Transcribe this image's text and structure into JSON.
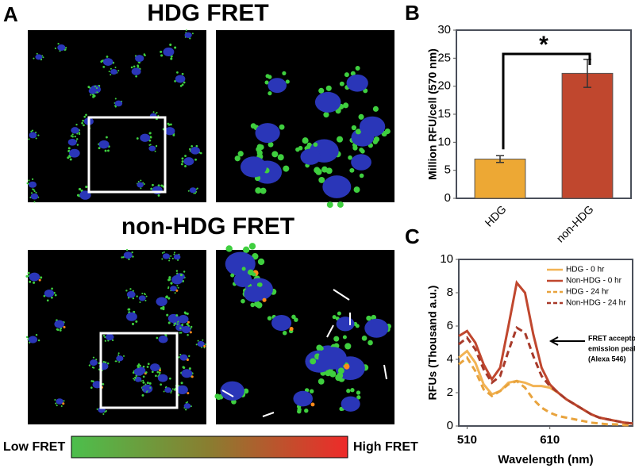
{
  "figure": {
    "panels": [
      "A",
      "B",
      "C"
    ],
    "titles": [
      "HDG FRET",
      "non-HDG FRET"
    ],
    "title_colors": [
      "#e8a33d",
      "#c0472e"
    ],
    "colorbar": {
      "low": "Low FRET",
      "high": "High FRET"
    }
  },
  "chart_data": [
    {
      "type": "bar",
      "ylabel": "Million RFU/cell (570 nm)",
      "categories": [
        "HDG",
        "non-HDG"
      ],
      "values": [
        7.0,
        22.3
      ],
      "errors": [
        0.6,
        2.5
      ],
      "colors": [
        "#eda834",
        "#c0472e"
      ],
      "ylim": [
        0,
        30
      ],
      "yticks": [
        0,
        5,
        10,
        15,
        20,
        25,
        30
      ],
      "annotations": [
        "*"
      ]
    },
    {
      "type": "line",
      "xlabel": "Wavelength (nm)",
      "ylabel": "RFUs (Thousand a.u.)",
      "xlim": [
        500,
        710
      ],
      "xticks": [
        510,
        610
      ],
      "ylim": [
        0,
        10
      ],
      "yticks": [
        0,
        2,
        4,
        6,
        8,
        10
      ],
      "x": [
        500,
        510,
        520,
        530,
        540,
        550,
        560,
        570,
        580,
        590,
        600,
        610,
        620,
        630,
        640,
        650,
        660,
        670,
        680,
        690,
        700,
        710
      ],
      "series": [
        {
          "name": "HDG - 0 hr",
          "color": "#f2b354",
          "dashed": false,
          "values": [
            4.1,
            4.5,
            3.8,
            2.5,
            1.9,
            2.1,
            2.6,
            2.7,
            2.6,
            2.4,
            2.4,
            2.3,
            2.0,
            1.6,
            1.3,
            1.0,
            0.7,
            0.5,
            0.4,
            0.3,
            0.2,
            0.15
          ]
        },
        {
          "name": "Non-HDG - 0 hr",
          "color": "#c0472e",
          "dashed": false,
          "values": [
            5.4,
            5.7,
            5.0,
            3.7,
            2.8,
            3.5,
            6.0,
            8.6,
            8.0,
            5.5,
            3.5,
            2.5,
            2.0,
            1.6,
            1.3,
            1.0,
            0.7,
            0.5,
            0.4,
            0.3,
            0.2,
            0.15
          ]
        },
        {
          "name": "HDG - 24 hr",
          "color": "#e8a33d",
          "dashed": true,
          "values": [
            3.7,
            4.1,
            3.3,
            2.2,
            1.8,
            2.1,
            2.5,
            2.7,
            2.3,
            1.6,
            1.1,
            0.8,
            0.6,
            0.5,
            0.4,
            0.3,
            0.2,
            0.15,
            0.1,
            0.1,
            0.05,
            0.05
          ]
        },
        {
          "name": "Non-HDG - 24 hr",
          "color": "#a83a2a",
          "dashed": true,
          "values": [
            4.9,
            5.3,
            4.6,
            3.4,
            2.6,
            3.0,
            4.5,
            5.9,
            5.6,
            4.2,
            3.0,
            2.4,
            2.0,
            1.6,
            1.3,
            1.0,
            0.7,
            0.5,
            0.4,
            0.3,
            0.2,
            0.15
          ]
        }
      ],
      "legend": "upper right",
      "annotations": [
        "FRET acceptor",
        "emission peak",
        "(Alexa 546)"
      ]
    }
  ]
}
